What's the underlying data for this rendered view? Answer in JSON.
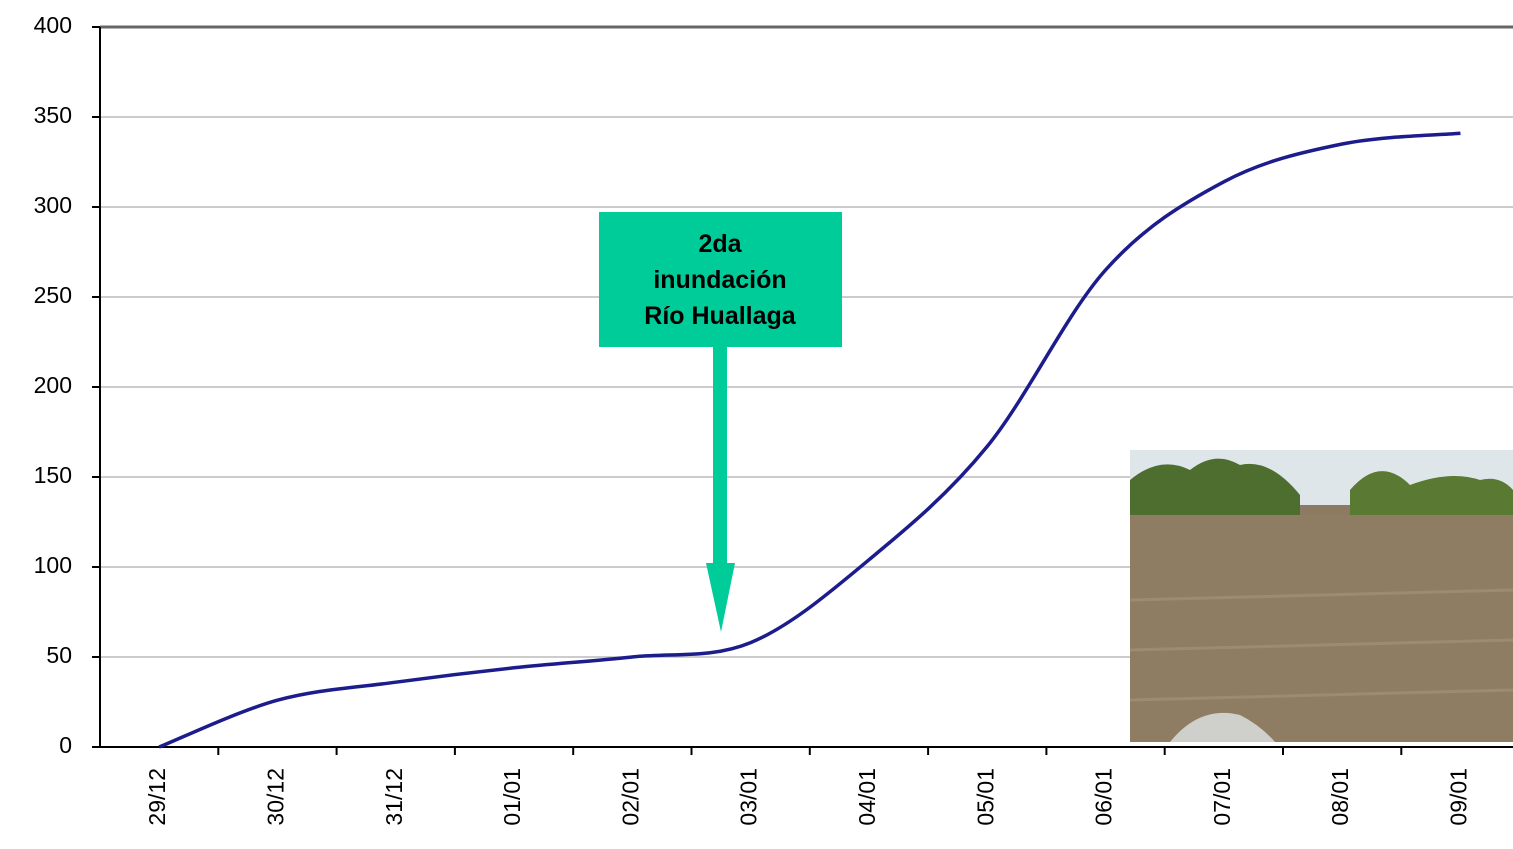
{
  "chart_data": {
    "type": "line",
    "categories": [
      "29/12",
      "30/12",
      "31/12",
      "01/01",
      "02/01",
      "03/01",
      "04/01",
      "05/01",
      "06/01",
      "07/01",
      "08/01",
      "09/01"
    ],
    "series": [
      {
        "color": "#1c1c8c",
        "values": [
          0,
          26,
          36,
          44,
          50,
          58,
          104,
          167,
          265,
          314,
          335,
          341
        ]
      }
    ],
    "ylim": [
      0,
      400
    ],
    "yticks": [
      0,
      50,
      100,
      150,
      200,
      250,
      300,
      350,
      400
    ],
    "grid": true,
    "annotation": {
      "lines": [
        "2da",
        "inundación",
        "Río Huallaga"
      ],
      "color": "#00cc99"
    }
  }
}
